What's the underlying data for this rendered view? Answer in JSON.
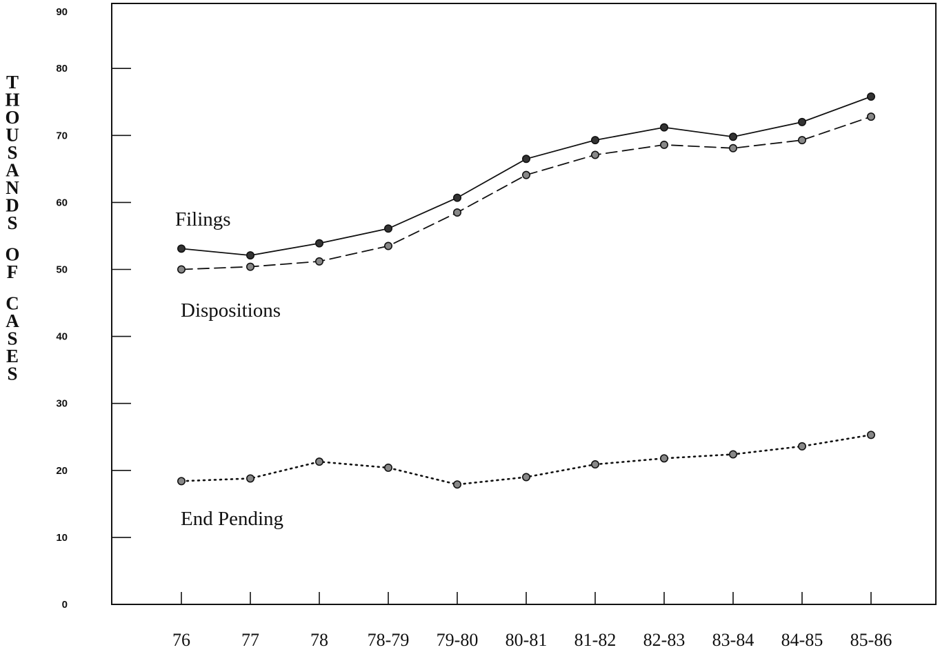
{
  "chart_data": {
    "type": "line",
    "title": "",
    "xlabel": "",
    "ylabel": "THOUSANDS OF CASES",
    "categories": [
      "76",
      "77",
      "78",
      "78-79",
      "79-80",
      "80-81",
      "81-82",
      "82-83",
      "83-84",
      "84-85",
      "85-86"
    ],
    "yticks": [
      "0",
      "10",
      "20",
      "30",
      "40",
      "50",
      "60",
      "70",
      "80",
      "90"
    ],
    "ylim": [
      0,
      90
    ],
    "grid": false,
    "series": [
      {
        "name": "Filings",
        "style": "solid",
        "marker": "filled",
        "values": [
          53.1,
          52.1,
          53.9,
          56.1,
          60.7,
          66.5,
          69.3,
          71.2,
          69.8,
          72.0,
          75.8
        ]
      },
      {
        "name": "Dispositions",
        "style": "dashed",
        "marker": "hollow",
        "values": [
          50.0,
          50.4,
          51.2,
          53.5,
          58.5,
          64.1,
          67.1,
          68.6,
          68.1,
          69.3,
          72.8
        ]
      },
      {
        "name": "End Pending",
        "style": "dotted",
        "marker": "hollow",
        "values": [
          18.4,
          18.8,
          21.3,
          20.4,
          17.9,
          19.0,
          20.9,
          21.8,
          22.4,
          23.6,
          25.3
        ]
      }
    ]
  },
  "colors": {
    "ink": "#111111",
    "background": "#ffffff"
  }
}
